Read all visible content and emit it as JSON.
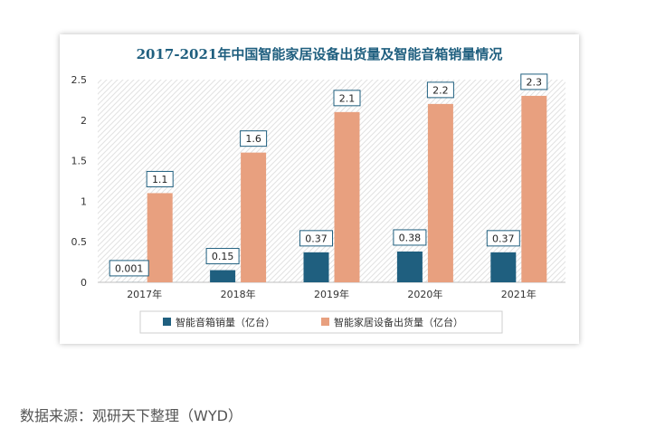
{
  "chart_data": {
    "type": "bar",
    "title": "2017-2021年中国智能家居设备出货量及智能音箱销量情况",
    "xlabel": "",
    "ylabel": "",
    "categories": [
      "2017年",
      "2018年",
      "2019年",
      "2020年",
      "2021年"
    ],
    "ylim": [
      0,
      2.5
    ],
    "yticks": [
      "0",
      "0.5",
      "1",
      "1.5",
      "2",
      "2.5"
    ],
    "grid": false,
    "legend_position": "bottom",
    "series": [
      {
        "name": "智能音箱销量（亿台）",
        "color": "#1f5f7f",
        "values": [
          0.001,
          0.15,
          0.37,
          0.38,
          0.37
        ],
        "labels": [
          "0.001",
          "0.15",
          "0.37",
          "0.38",
          "0.37"
        ]
      },
      {
        "name": "智能家居设备出货量（亿台）",
        "color": "#e8a07f",
        "values": [
          1.1,
          1.6,
          2.1,
          2.2,
          2.3
        ],
        "labels": [
          "1.1",
          "1.6",
          "2.1",
          "2.2",
          "2.3"
        ]
      }
    ]
  },
  "source": "数据来源：观研天下整理（WYD）"
}
